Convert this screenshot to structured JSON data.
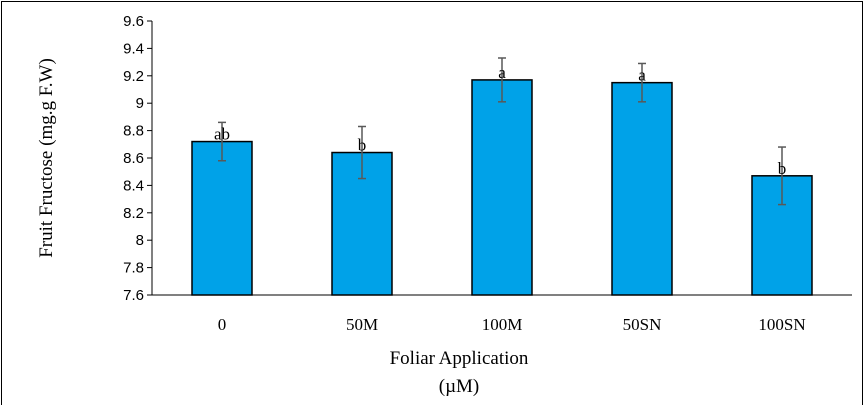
{
  "chart_data": {
    "type": "bar",
    "categories": [
      "0",
      "50M",
      "100M",
      "50SN",
      "100SN"
    ],
    "values": [
      8.72,
      8.64,
      9.17,
      9.15,
      8.47
    ],
    "errors": [
      0.14,
      0.19,
      0.16,
      0.14,
      0.21
    ],
    "significance": [
      "ab",
      "b",
      "a",
      "a",
      "b"
    ],
    "xlabel": "Foliar Application",
    "xlabel_unit": "(µM)",
    "ylabel": "Fruit Fructose (mg.g F.W)",
    "ylim": [
      7.6,
      9.6
    ],
    "yticks": [
      "7.6",
      "7.8",
      "8",
      "8.2",
      "8.4",
      "8.6",
      "8.8",
      "9",
      "9.2",
      "9.4",
      "9.6"
    ],
    "bar_color": "#00a2e8",
    "grid": false,
    "legend": "none"
  }
}
